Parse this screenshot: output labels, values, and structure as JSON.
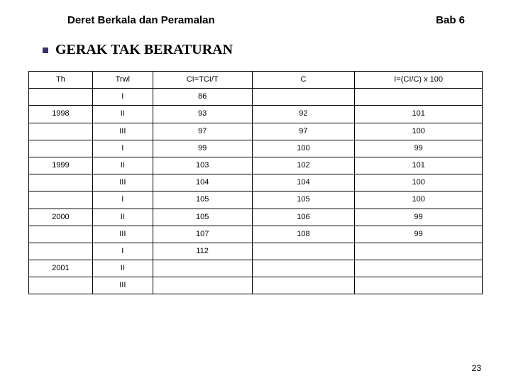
{
  "header": {
    "left": "Deret Berkala dan Peramalan",
    "right": "Bab 6"
  },
  "section_title": "GERAK TAK BERATURAN",
  "table": {
    "columns": [
      "Th",
      "Trwl",
      "CI=TCI/T",
      "C",
      "I=(CI/C) x 100"
    ],
    "rows": [
      [
        "",
        "I",
        "86",
        "",
        ""
      ],
      [
        "1998",
        "II",
        "93",
        "92",
        "101"
      ],
      [
        "",
        "III",
        "97",
        "97",
        "100"
      ],
      [
        "",
        "I",
        "99",
        "100",
        "99"
      ],
      [
        "1999",
        "II",
        "103",
        "102",
        "101"
      ],
      [
        "",
        "III",
        "104",
        "104",
        "100"
      ],
      [
        "",
        "I",
        "105",
        "105",
        "100"
      ],
      [
        "2000",
        "II",
        "105",
        "106",
        "99"
      ],
      [
        "",
        "III",
        "107",
        "108",
        "99"
      ],
      [
        "",
        "I",
        "112",
        "",
        ""
      ],
      [
        "2001",
        "II",
        "",
        "",
        ""
      ],
      [
        "",
        "III",
        "",
        "",
        ""
      ]
    ]
  },
  "page_number": "23",
  "colors": {
    "bullet": "#333366",
    "border": "#000000",
    "text": "#000000",
    "background": "#ffffff"
  }
}
